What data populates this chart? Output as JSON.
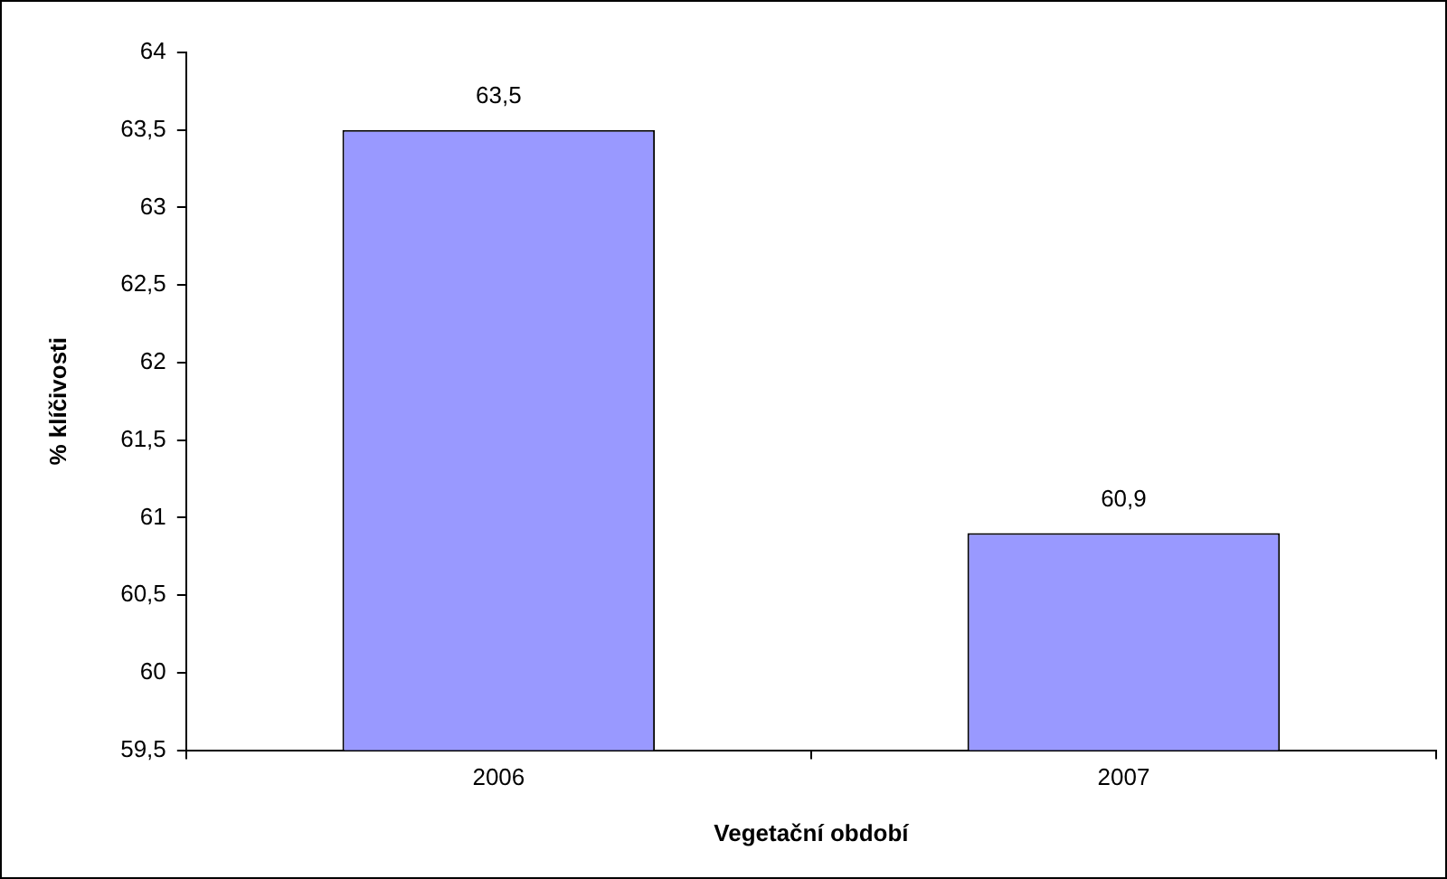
{
  "chart_data": {
    "type": "bar",
    "xlabel": "Vegetační období",
    "ylabel": "% klíčivosti",
    "categories": [
      "2006",
      "2007"
    ],
    "values": [
      63.5,
      60.9
    ],
    "value_labels": [
      "63,5",
      "60,9"
    ],
    "color": "#9999ff",
    "ylim": [
      59.5,
      64
    ],
    "yticks": [
      {
        "value": 59.5,
        "label": "59,5"
      },
      60,
      {
        "value": 60.5,
        "label": "60,5"
      },
      61,
      {
        "value": 61.5,
        "label": "61,5"
      },
      62,
      {
        "value": 62.5,
        "label": "62,5"
      },
      63,
      {
        "value": 63.5,
        "label": "63,5"
      },
      64
    ],
    "grid": false,
    "legend": false
  }
}
